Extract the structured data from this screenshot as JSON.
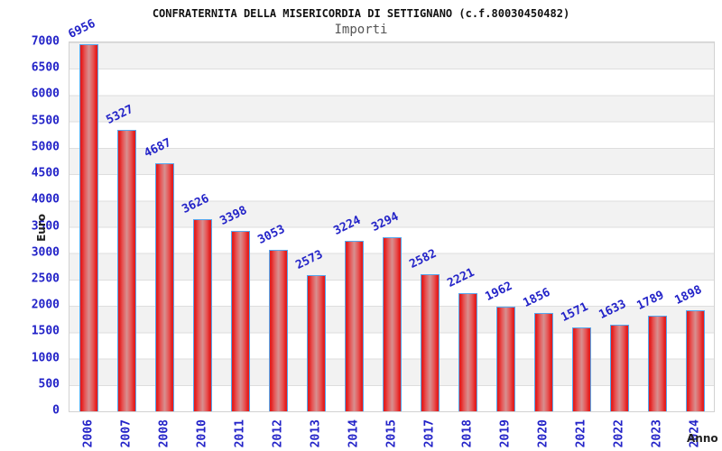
{
  "chart": {
    "title": "CONFRATERNITA DELLA MISERICORDIA DI SETTIGNANO (c.f.80030450482)",
    "subtitle": "Importi",
    "y_axis_label": "Euro",
    "x_axis_label": "Anno"
  },
  "chart_data": {
    "type": "bar",
    "title": "CONFRATERNITA DELLA MISERICORDIA DI SETTIGNANO (c.f.80030450482)",
    "subtitle": "Importi",
    "xlabel": "Anno",
    "ylabel": "Euro",
    "categories": [
      "2006",
      "2007",
      "2008",
      "2010",
      "2011",
      "2012",
      "2013",
      "2014",
      "2015",
      "2017",
      "2018",
      "2019",
      "2020",
      "2021",
      "2022",
      "2023",
      "2024"
    ],
    "values": [
      6956,
      5327,
      4687,
      3626,
      3398,
      3053,
      2573,
      3224,
      3294,
      2582,
      2221,
      1962,
      1856,
      1571,
      1633,
      1789,
      1898
    ],
    "ylim": [
      0,
      7000
    ],
    "y_ticks": [
      0,
      500,
      1000,
      1500,
      2000,
      2500,
      3000,
      3500,
      4000,
      4500,
      5000,
      5500,
      6000,
      6500,
      7000
    ],
    "grid": "horizontal gridlines every 500 with alternating gray/white bands",
    "legend": "none",
    "value_labels": "above each bar, rotated, blue",
    "colors": {
      "label_blue": "#2323c8",
      "bar_edge": "#55a7ee",
      "bar_red": "#e31d1d",
      "bar_center_highlight": "#d79090",
      "band_gray": "#f2f2f2",
      "gridline": "#dedede",
      "title_text": "#111111",
      "subtitle_text": "#555555"
    }
  }
}
